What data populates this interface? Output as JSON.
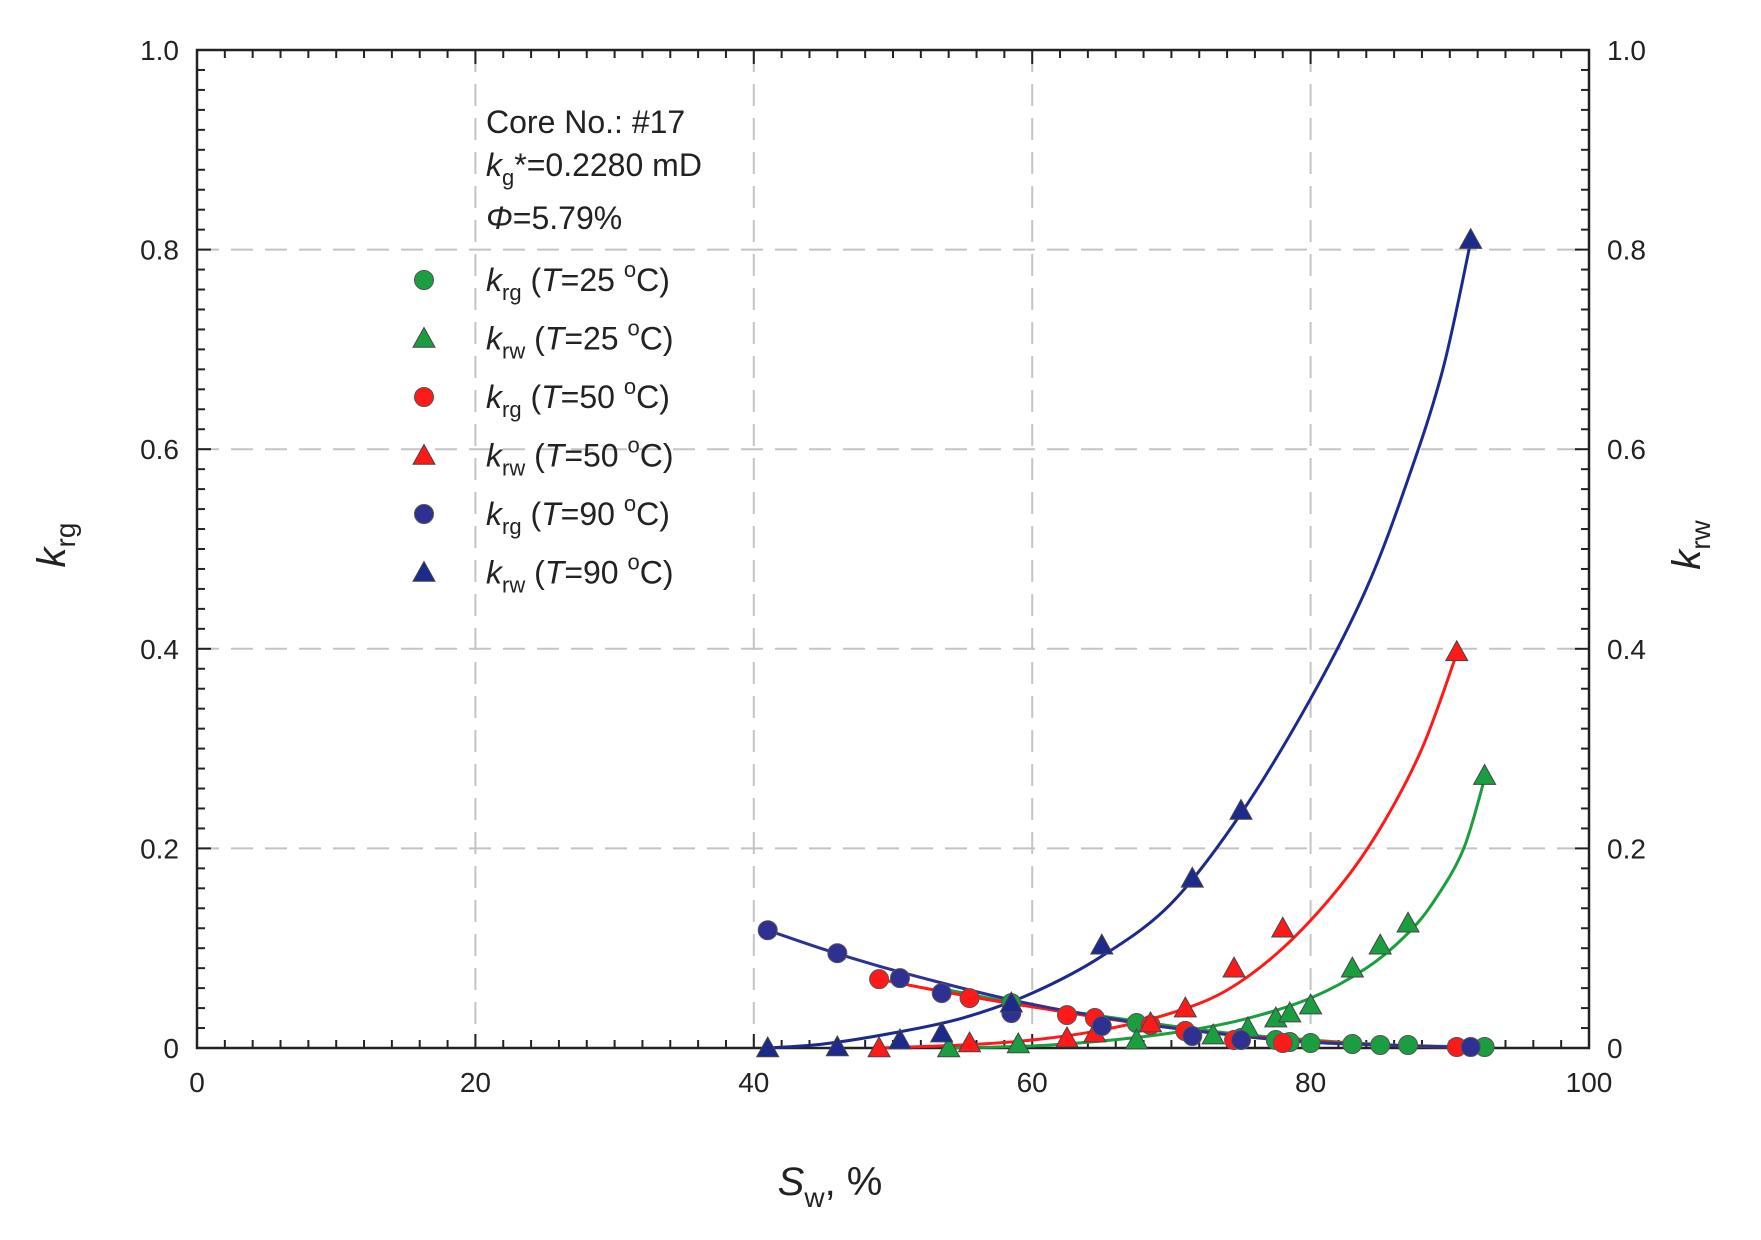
{
  "chart_data": {
    "type": "scatter",
    "xlabel": {
      "main": "S",
      "sub": "w",
      "suffix": ", %"
    },
    "ylabel_left": {
      "main": "k",
      "sub": "rg"
    },
    "ylabel_right": {
      "main": "k",
      "sub": "rw"
    },
    "xlim": [
      0,
      100
    ],
    "ylim": [
      0,
      1.0
    ],
    "x_ticks": [
      "0",
      "20",
      "40",
      "60",
      "80",
      "100"
    ],
    "y_ticks": [
      "0",
      "0.2",
      "0.4",
      "0.6",
      "0.8",
      "1.0"
    ],
    "y_ticks_right": [
      "0",
      "0.2",
      "0.4",
      "0.6",
      "0.8",
      "1.0"
    ],
    "x_tick_values": [
      0,
      20,
      40,
      60,
      80,
      100
    ],
    "y_tick_values": [
      0,
      0.2,
      0.4,
      0.6,
      0.8,
      1.0
    ],
    "grid": true,
    "annotation": {
      "core": "Core No.: #17",
      "kg_main": "k",
      "kg_sub": "g",
      "kg_value": "*=0.2280 mD",
      "phi_symbol": "Φ",
      "phi_value": "=5.79%"
    },
    "series": [
      {
        "name": "krg_T25",
        "marker": "circle",
        "color": "#1a9e3f",
        "legend": {
          "k": "k",
          "sub": "rg",
          "paren_open": " (",
          "T": "T",
          "eq": "=25 ",
          "sup": "o",
          "unit": "C)"
        },
        "x": [
          58.5,
          67.5,
          71,
          75,
          77.5,
          78.5,
          80,
          83,
          85,
          87,
          92.5
        ],
        "y": [
          0.045,
          0.025,
          0.017,
          0.01,
          0.008,
          0.006,
          0.005,
          0.004,
          0.003,
          0.003,
          0.001
        ],
        "curve_x": [
          54,
          58,
          62,
          66,
          70,
          74,
          78,
          82,
          86,
          90,
          92.5
        ],
        "curve_y": [
          0.058,
          0.047,
          0.038,
          0.03,
          0.022,
          0.015,
          0.01,
          0.006,
          0.003,
          0.0015,
          0.001
        ]
      },
      {
        "name": "krw_T25",
        "marker": "triangle",
        "color": "#1a9e3f",
        "legend": {
          "k": "k",
          "sub": "rw",
          "paren_open": " (",
          "T": "T",
          "eq": "=25 ",
          "sup": "o",
          "unit": "C)"
        },
        "x": [
          54,
          59,
          67.5,
          73,
          75.5,
          77.5,
          78.5,
          80,
          83,
          85,
          87,
          92.5
        ],
        "y": [
          0,
          0.004,
          0.008,
          0.013,
          0.02,
          0.03,
          0.035,
          0.043,
          0.08,
          0.103,
          0.125,
          0.273
        ],
        "curve_x": [
          54,
          60,
          65,
          70,
          75,
          80,
          84,
          87,
          89,
          91,
          92.5
        ],
        "curve_y": [
          0,
          0.002,
          0.007,
          0.015,
          0.028,
          0.05,
          0.08,
          0.115,
          0.15,
          0.2,
          0.27
        ]
      },
      {
        "name": "krg_T50",
        "marker": "circle",
        "color": "#ff1a1a",
        "legend": {
          "k": "k",
          "sub": "rg",
          "paren_open": " (",
          "T": "T",
          "eq": "=50 ",
          "sup": "o",
          "unit": "C)"
        },
        "x": [
          49,
          55.5,
          62.5,
          64.5,
          68.5,
          71,
          74.5,
          78,
          90.5
        ],
        "y": [
          0.069,
          0.05,
          0.033,
          0.03,
          0.023,
          0.017,
          0.008,
          0.005,
          0.001
        ],
        "curve_x": [
          49,
          53,
          57,
          61,
          65,
          69,
          73,
          77,
          81,
          85,
          88,
          90.5
        ],
        "curve_y": [
          0.069,
          0.058,
          0.048,
          0.039,
          0.03,
          0.022,
          0.015,
          0.01,
          0.006,
          0.003,
          0.0015,
          0.001
        ]
      },
      {
        "name": "krw_T50",
        "marker": "triangle",
        "color": "#ff1a1a",
        "legend": {
          "k": "k",
          "sub": "rw",
          "paren_open": " (",
          "T": "T",
          "eq": "=50 ",
          "sup": "o",
          "unit": "C)"
        },
        "x": [
          49,
          55.5,
          62.5,
          64.5,
          68.5,
          71,
          74.5,
          78,
          90.5
        ],
        "y": [
          0,
          0.005,
          0.01,
          0.015,
          0.025,
          0.04,
          0.08,
          0.12,
          0.397
        ],
        "curve_x": [
          49,
          55,
          60,
          65,
          70,
          74,
          78,
          82,
          85,
          88,
          90.5
        ],
        "curve_y": [
          0,
          0.003,
          0.008,
          0.018,
          0.035,
          0.058,
          0.1,
          0.16,
          0.22,
          0.3,
          0.395
        ]
      },
      {
        "name": "krg_T90",
        "marker": "circle",
        "color": "#2e3192",
        "legend": {
          "k": "k",
          "sub": "rg",
          "paren_open": " (",
          "T": "T",
          "eq": "=90 ",
          "sup": "o",
          "unit": "C)"
        },
        "x": [
          41,
          46,
          50.5,
          53.5,
          58.5,
          65,
          71.5,
          75,
          91.5
        ],
        "y": [
          0.118,
          0.095,
          0.07,
          0.055,
          0.035,
          0.022,
          0.012,
          0.008,
          0.001
        ],
        "curve_x": [
          41,
          45,
          49,
          53,
          57,
          61,
          65,
          69,
          73,
          77,
          81,
          85,
          89,
          91.5
        ],
        "curve_y": [
          0.118,
          0.099,
          0.082,
          0.067,
          0.053,
          0.041,
          0.031,
          0.022,
          0.015,
          0.009,
          0.005,
          0.003,
          0.0015,
          0.001
        ]
      },
      {
        "name": "krw_T90",
        "marker": "triangle",
        "color": "#1c2a8c",
        "legend": {
          "k": "k",
          "sub": "rw",
          "paren_open": " (",
          "T": "T",
          "eq": "=90 ",
          "sup": "o",
          "unit": "C)"
        },
        "x": [
          41,
          46,
          50.5,
          53.5,
          58.5,
          65,
          71.5,
          75,
          91.5
        ],
        "y": [
          0,
          0.001,
          0.008,
          0.015,
          0.045,
          0.103,
          0.17,
          0.238,
          0.81
        ],
        "curve_x": [
          41,
          45,
          50,
          55,
          60,
          65,
          70,
          75,
          80,
          84,
          87,
          89.5,
          91.5
        ],
        "curve_y": [
          0,
          0.004,
          0.015,
          0.03,
          0.055,
          0.092,
          0.145,
          0.235,
          0.35,
          0.46,
          0.57,
          0.68,
          0.808
        ]
      }
    ]
  }
}
